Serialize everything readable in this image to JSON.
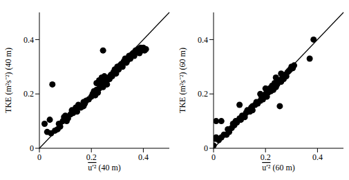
{
  "chart_data": [
    {
      "type": "scatter",
      "x_label": "u′² (40 m)",
      "y_label": "TKE (m²s⁻²) (40 m)",
      "xlim": [
        0,
        0.5
      ],
      "ylim": [
        0,
        0.5
      ],
      "xticks": [
        0,
        0.2,
        0.4
      ],
      "yticks": [
        0,
        0.2,
        0.4
      ],
      "color": "#000000",
      "marker": "circle",
      "reference_line": {
        "x": [
          0,
          0.5
        ],
        "y": [
          0,
          0.5
        ]
      },
      "x": [
        0.02,
        0.04,
        0.05,
        0.03,
        0.045,
        0.06,
        0.07,
        0.075,
        0.08,
        0.09,
        0.095,
        0.1,
        0.105,
        0.11,
        0.12,
        0.125,
        0.13,
        0.14,
        0.145,
        0.15,
        0.16,
        0.17,
        0.175,
        0.18,
        0.19,
        0.2,
        0.205,
        0.21,
        0.215,
        0.22,
        0.225,
        0.23,
        0.235,
        0.24,
        0.245,
        0.245,
        0.25,
        0.255,
        0.26,
        0.265,
        0.27,
        0.275,
        0.28,
        0.285,
        0.29,
        0.295,
        0.3,
        0.305,
        0.31,
        0.315,
        0.32,
        0.325,
        0.33,
        0.335,
        0.34,
        0.345,
        0.35,
        0.355,
        0.36,
        0.365,
        0.37,
        0.375,
        0.38,
        0.385,
        0.39,
        0.395,
        0.4,
        0.405,
        0.41,
        0.23,
        0.24,
        0.25,
        0.22,
        0.17,
        0.26
      ],
      "y": [
        0.09,
        0.105,
        0.235,
        0.06,
        0.055,
        0.065,
        0.07,
        0.09,
        0.08,
        0.1,
        0.115,
        0.12,
        0.1,
        0.11,
        0.125,
        0.14,
        0.13,
        0.15,
        0.135,
        0.16,
        0.15,
        0.17,
        0.165,
        0.175,
        0.18,
        0.19,
        0.2,
        0.21,
        0.195,
        0.215,
        0.205,
        0.22,
        0.23,
        0.235,
        0.36,
        0.225,
        0.245,
        0.24,
        0.25,
        0.26,
        0.255,
        0.27,
        0.265,
        0.28,
        0.29,
        0.275,
        0.3,
        0.29,
        0.305,
        0.31,
        0.3,
        0.32,
        0.33,
        0.315,
        0.325,
        0.34,
        0.33,
        0.345,
        0.35,
        0.34,
        0.36,
        0.355,
        0.365,
        0.35,
        0.37,
        0.36,
        0.37,
        0.36,
        0.365,
        0.25,
        0.26,
        0.265,
        0.24,
        0.155,
        0.235
      ]
    },
    {
      "type": "scatter",
      "x_label": "u′² (60 m)",
      "y_label": "TKE (m²s⁻²) (60 m)",
      "xlim": [
        0,
        0.5
      ],
      "ylim": [
        0,
        0.5
      ],
      "xticks": [
        0,
        0.2,
        0.4
      ],
      "yticks": [
        0,
        0.2,
        0.4
      ],
      "color": "#000000",
      "marker": "circle",
      "reference_line": {
        "x": [
          0,
          0.5
        ],
        "y": [
          0,
          0.5
        ]
      },
      "x": [
        0,
        0.005,
        0.01,
        0.01,
        0.03,
        0.02,
        0.03,
        0.04,
        0.05,
        0.055,
        0.06,
        0.07,
        0.075,
        0.08,
        0.085,
        0.09,
        0.1,
        0.1,
        0.105,
        0.11,
        0.12,
        0.125,
        0.13,
        0.14,
        0.145,
        0.15,
        0.16,
        0.165,
        0.17,
        0.18,
        0.185,
        0.19,
        0.2,
        0.205,
        0.21,
        0.215,
        0.22,
        0.225,
        0.23,
        0.235,
        0.24,
        0.245,
        0.25,
        0.255,
        0.26,
        0.265,
        0.27,
        0.275,
        0.28,
        0.285,
        0.29,
        0.295,
        0.3,
        0.305,
        0.31,
        0.37,
        0.385,
        0.2,
        0.24,
        0.26,
        0.15,
        0.18
      ],
      "y": [
        0.01,
        0.035,
        0.04,
        0.1,
        0.1,
        0.03,
        0.04,
        0.05,
        0.05,
        0.07,
        0.06,
        0.075,
        0.09,
        0.085,
        0.1,
        0.095,
        0.16,
        0.11,
        0.105,
        0.12,
        0.115,
        0.13,
        0.14,
        0.135,
        0.15,
        0.155,
        0.16,
        0.17,
        0.165,
        0.175,
        0.19,
        0.18,
        0.2,
        0.19,
        0.205,
        0.22,
        0.21,
        0.23,
        0.215,
        0.24,
        0.225,
        0.235,
        0.25,
        0.155,
        0.245,
        0.26,
        0.255,
        0.27,
        0.265,
        0.28,
        0.285,
        0.29,
        0.3,
        0.295,
        0.305,
        0.33,
        0.4,
        0.22,
        0.26,
        0.275,
        0.14,
        0.2
      ]
    }
  ]
}
